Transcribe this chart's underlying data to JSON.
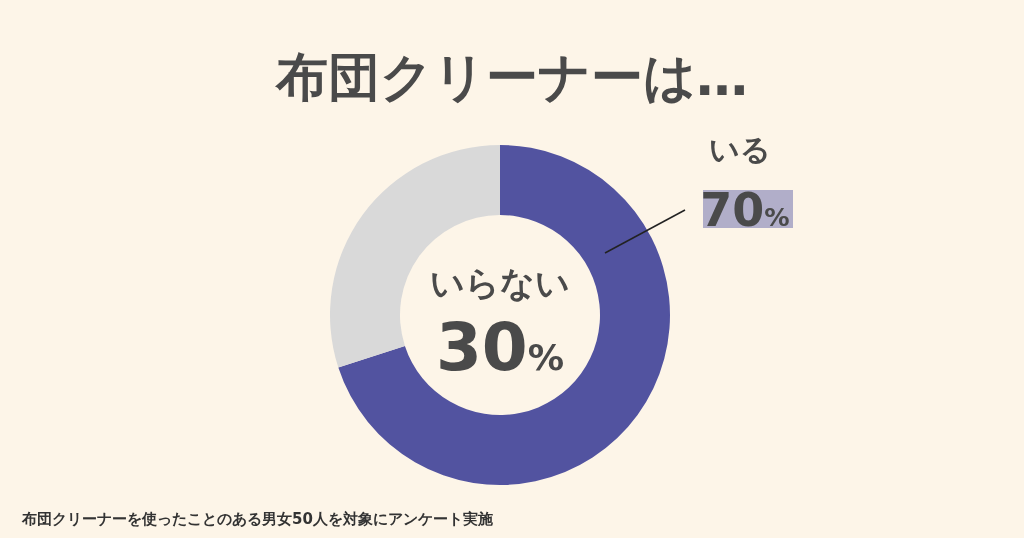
{
  "chart_data": {
    "type": "donut",
    "title": "布団クリーナーは…",
    "categories": [
      "いる",
      "いらない"
    ],
    "values": [
      70,
      30
    ],
    "colors": [
      "#5253a0",
      "#d9d9d9"
    ],
    "value_labels": [
      "70%",
      "30%"
    ],
    "annotations": [
      "布団クリーナーを使ったことのある男女50人を対象にアンケート実施"
    ]
  }
}
